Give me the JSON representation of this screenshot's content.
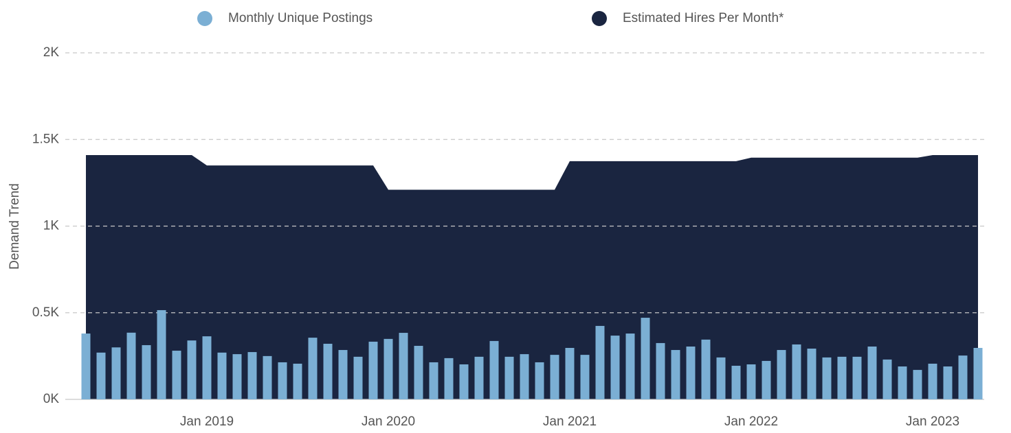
{
  "chart_data": {
    "type": "bar_area",
    "y_label": "Demand Trend",
    "categories": [
      null,
      null,
      null,
      null,
      null,
      null,
      null,
      null,
      "Jan 2019",
      null,
      null,
      null,
      null,
      null,
      null,
      null,
      null,
      null,
      null,
      null,
      "Jan 2020",
      null,
      null,
      null,
      null,
      null,
      null,
      null,
      null,
      null,
      null,
      null,
      "Jan 2021",
      null,
      null,
      null,
      null,
      null,
      null,
      null,
      null,
      null,
      null,
      null,
      "Jan 2022",
      null,
      null,
      null,
      null,
      null,
      null,
      null,
      null,
      null,
      null,
      null,
      "Jan 2023",
      null,
      null,
      null
    ],
    "series": [
      {
        "name": "Monthly Unique Postings",
        "kind": "bar",
        "color": "#7bafd4",
        "values": [
          380,
          270,
          300,
          385,
          313,
          515,
          281,
          340,
          364,
          270,
          261,
          273,
          250,
          214,
          206,
          356,
          321,
          285,
          246,
          333,
          349,
          384,
          309,
          214,
          238,
          202,
          246,
          337,
          246,
          261,
          214,
          257,
          297,
          257,
          424,
          368,
          380,
          471,
          325,
          285,
          305,
          345,
          242,
          194,
          202,
          222,
          285,
          317,
          293,
          242,
          246,
          246,
          305,
          230,
          190,
          170,
          206,
          190,
          253,
          297
        ]
      },
      {
        "name": "Estimated Hires Per Month*",
        "kind": "area",
        "color": "#1a2540",
        "values": [
          1410,
          1410,
          1410,
          1410,
          1410,
          1410,
          1410,
          1410,
          1350,
          1350,
          1350,
          1350,
          1350,
          1350,
          1350,
          1350,
          1350,
          1350,
          1350,
          1350,
          1210,
          1210,
          1210,
          1210,
          1210,
          1210,
          1210,
          1210,
          1210,
          1210,
          1210,
          1210,
          1375,
          1375,
          1375,
          1375,
          1375,
          1375,
          1375,
          1375,
          1375,
          1375,
          1375,
          1375,
          1395,
          1395,
          1395,
          1395,
          1395,
          1395,
          1395,
          1395,
          1395,
          1395,
          1395,
          1395,
          1410,
          1410,
          1410,
          1410
        ]
      }
    ],
    "ylim": [
      0,
      2000
    ],
    "yticks": [
      {
        "value": 0,
        "label": "0K"
      },
      {
        "value": 500,
        "label": "0.5K"
      },
      {
        "value": 1000,
        "label": "1K"
      },
      {
        "value": 1500,
        "label": "1.5K"
      },
      {
        "value": 2000,
        "label": "2K"
      }
    ],
    "grid": true
  }
}
